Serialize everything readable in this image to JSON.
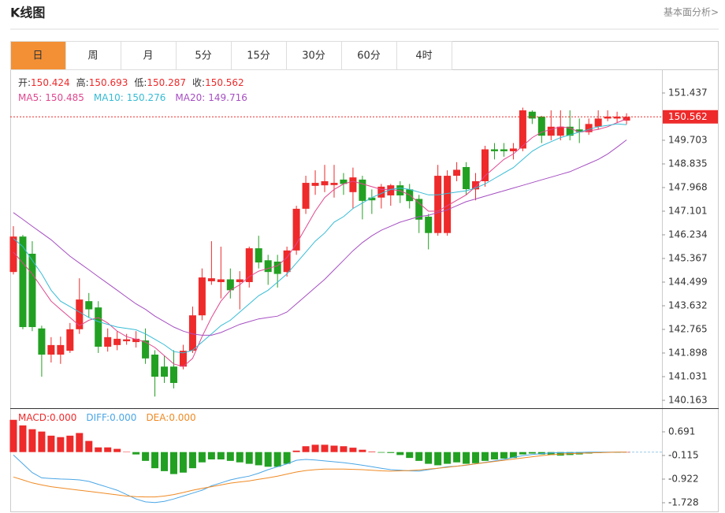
{
  "header": {
    "title": "K线图",
    "link": "基本面分析>"
  },
  "tabs": {
    "items": [
      "日",
      "周",
      "月",
      "5分",
      "15分",
      "30分",
      "60分",
      "4时"
    ],
    "active": 0
  },
  "chart_data": [
    {
      "type": "candlestick",
      "ohlc_labels": [
        "开:",
        "高:",
        "低:",
        "收:"
      ],
      "ohlc": [
        150.424,
        150.693,
        150.287,
        150.562
      ],
      "last_price": 150.562,
      "up_color": "#ee2a2a",
      "down_color": "#22a022",
      "ylim": [
        139.874,
        152.304
      ],
      "yticks": [
        151.437,
        149.703,
        148.835,
        147.968,
        147.101,
        146.234,
        145.367,
        144.499,
        143.632,
        142.765,
        141.898,
        141.031,
        140.163
      ],
      "open": [
        144.87,
        146.17,
        145.54,
        142.8,
        141.84,
        141.84,
        141.98,
        142.77,
        143.8,
        143.57,
        142.13,
        142.19,
        142.33,
        142.3,
        142.36,
        141.84,
        141.4,
        141.4,
        141.4,
        141.98,
        143.28,
        144.53,
        144.5,
        144.6,
        144.5,
        144.5,
        145.74,
        145.3,
        145.25,
        144.87,
        145.66,
        147.19,
        148.03,
        148.05,
        148.06,
        148.26,
        147.8,
        148.26,
        147.6,
        147.6,
        147.68,
        148.05,
        147.9,
        147.55,
        146.9,
        146.3,
        146.3,
        148.4,
        148.72,
        147.9,
        148.2,
        149.37,
        149.37,
        149.3,
        149.4,
        150.75,
        150.57,
        149.87,
        149.87,
        150.2,
        150.1,
        150.0,
        150.2,
        150.5,
        150.5,
        150.424
      ],
      "high": [
        146.55,
        146.23,
        146.0,
        142.9,
        142.48,
        142.5,
        143.0,
        144.64,
        144.1,
        143.8,
        142.8,
        142.7,
        142.6,
        142.7,
        142.8,
        142.0,
        141.8,
        142.0,
        142.2,
        143.6,
        145.0,
        146.0,
        145.8,
        145.0,
        144.9,
        145.8,
        146.2,
        145.5,
        145.5,
        145.8,
        147.3,
        148.4,
        148.6,
        148.8,
        148.8,
        148.5,
        148.7,
        148.4,
        147.9,
        148.1,
        148.1,
        148.2,
        148.1,
        147.7,
        147.0,
        148.8,
        148.6,
        148.9,
        148.9,
        148.5,
        149.5,
        149.6,
        149.6,
        149.6,
        150.9,
        150.8,
        150.6,
        150.8,
        150.8,
        150.8,
        150.5,
        150.5,
        150.8,
        150.8,
        150.75,
        150.693
      ],
      "low": [
        144.78,
        142.77,
        142.7,
        141.03,
        141.55,
        141.5,
        141.9,
        142.6,
        143.2,
        141.9,
        141.95,
        142.0,
        142.2,
        142.1,
        141.5,
        140.3,
        140.8,
        140.6,
        141.3,
        141.9,
        143.1,
        144.4,
        143.9,
        143.9,
        143.5,
        144.3,
        145.0,
        144.4,
        144.3,
        144.7,
        145.5,
        147.0,
        147.7,
        147.8,
        147.6,
        147.7,
        147.2,
        146.8,
        147.0,
        147.2,
        147.3,
        147.4,
        147.2,
        146.3,
        145.7,
        146.2,
        146.2,
        148.2,
        147.7,
        147.5,
        148.0,
        149.0,
        149.1,
        149.0,
        149.3,
        150.3,
        149.6,
        149.7,
        149.7,
        149.7,
        149.6,
        149.9,
        150.1,
        150.4,
        150.35,
        150.287
      ],
      "close": [
        146.17,
        142.85,
        142.85,
        141.84,
        142.19,
        142.19,
        142.77,
        143.86,
        143.5,
        142.13,
        142.48,
        142.42,
        142.4,
        142.42,
        141.7,
        141.03,
        141.03,
        140.8,
        141.98,
        143.28,
        144.67,
        144.64,
        144.6,
        144.2,
        144.6,
        145.74,
        145.22,
        144.87,
        144.8,
        145.66,
        147.19,
        148.14,
        148.14,
        148.2,
        148.14,
        148.1,
        148.34,
        147.48,
        147.5,
        148.0,
        148.05,
        147.68,
        147.47,
        146.79,
        146.3,
        148.4,
        148.4,
        148.62,
        147.91,
        148.2,
        149.37,
        149.3,
        149.3,
        149.4,
        150.8,
        150.5,
        149.87,
        150.2,
        150.2,
        149.87,
        150.0,
        150.3,
        150.5,
        150.57,
        150.57,
        150.562
      ],
      "series": [
        {
          "name": "MA5:",
          "legend_value": 150.485,
          "color": "#e0478f",
          "values": [
            145.6,
            145.2,
            144.8,
            144.3,
            143.8,
            143.5,
            143.2,
            142.9,
            143.1,
            143.2,
            143.0,
            142.7,
            142.5,
            142.4,
            142.3,
            142.1,
            141.8,
            141.5,
            141.4,
            141.7,
            142.5,
            143.2,
            143.8,
            144.2,
            144.4,
            144.7,
            144.9,
            145.0,
            145.1,
            145.4,
            145.9,
            146.5,
            147.1,
            147.6,
            147.9,
            148.1,
            148.2,
            148.1,
            148.0,
            147.9,
            147.9,
            147.85,
            147.7,
            147.4,
            147.1,
            147.1,
            147.3,
            147.5,
            147.7,
            148.0,
            148.4,
            148.7,
            149.0,
            149.2,
            149.5,
            149.8,
            150.0,
            150.1,
            150.2,
            150.15,
            150.0,
            150.05,
            150.1,
            150.2,
            150.35,
            150.485
          ]
        },
        {
          "name": "MA10:",
          "legend_value": 150.276,
          "color": "#36bcd6",
          "values": [
            146.1,
            145.8,
            145.3,
            144.8,
            144.2,
            143.8,
            143.6,
            143.4,
            143.2,
            143.05,
            142.95,
            142.85,
            142.8,
            142.75,
            142.6,
            142.4,
            142.2,
            141.95,
            141.9,
            142.0,
            142.3,
            142.6,
            142.9,
            143.1,
            143.4,
            143.7,
            144.0,
            144.2,
            144.5,
            144.8,
            145.2,
            145.6,
            146.0,
            146.3,
            146.7,
            146.9,
            147.2,
            147.4,
            147.6,
            147.75,
            147.9,
            147.95,
            147.9,
            147.8,
            147.7,
            147.7,
            147.75,
            147.8,
            147.85,
            147.95,
            148.1,
            148.3,
            148.5,
            148.7,
            149.0,
            149.3,
            149.5,
            149.65,
            149.8,
            149.9,
            150.0,
            150.1,
            150.2,
            150.25,
            150.3,
            150.276
          ]
        },
        {
          "name": "MA20:",
          "legend_value": 149.716,
          "color": "#a64fc2",
          "values": [
            147.05,
            146.8,
            146.55,
            146.3,
            146.05,
            145.75,
            145.45,
            145.2,
            144.95,
            144.7,
            144.45,
            144.2,
            143.95,
            143.7,
            143.5,
            143.25,
            143.05,
            142.85,
            142.7,
            142.6,
            142.55,
            142.55,
            142.65,
            142.8,
            142.95,
            143.05,
            143.15,
            143.2,
            143.25,
            143.4,
            143.7,
            144.0,
            144.3,
            144.6,
            144.95,
            145.3,
            145.65,
            145.95,
            146.2,
            146.4,
            146.55,
            146.7,
            146.8,
            146.9,
            146.95,
            147.05,
            147.15,
            147.3,
            147.45,
            147.55,
            147.65,
            147.75,
            147.85,
            147.95,
            148.05,
            148.15,
            148.25,
            148.35,
            148.45,
            148.55,
            148.7,
            148.85,
            149.0,
            149.2,
            149.45,
            149.716
          ]
        }
      ]
    },
    {
      "type": "macd",
      "ylim": [
        -2.051,
        1.497
      ],
      "yticks": [
        0.691,
        -0.115,
        -0.922,
        -1.728
      ],
      "bars": {
        "name": "MACD:",
        "legend_value": "0.000",
        "color": "#ee2a2a",
        "up_color": "#ee2a2a",
        "down_color": "#22a022",
        "values": [
          1.1,
          0.91,
          0.78,
          0.7,
          0.56,
          0.51,
          0.56,
          0.65,
          0.38,
          0.16,
          0.16,
          0.11,
          0.01,
          -0.08,
          -0.3,
          -0.55,
          -0.65,
          -0.75,
          -0.7,
          -0.55,
          -0.35,
          -0.25,
          -0.25,
          -0.3,
          -0.35,
          -0.4,
          -0.45,
          -0.5,
          -0.5,
          -0.4,
          0.05,
          0.2,
          0.25,
          0.25,
          0.22,
          0.2,
          0.15,
          0.08,
          0.02,
          -0.02,
          -0.03,
          -0.1,
          -0.2,
          -0.3,
          -0.4,
          -0.45,
          -0.4,
          -0.35,
          -0.4,
          -0.38,
          -0.3,
          -0.25,
          -0.22,
          -0.2,
          -0.08,
          -0.05,
          -0.08,
          -0.1,
          -0.12,
          -0.1,
          -0.08,
          -0.05,
          -0.03,
          -0.02,
          -0.02,
          0.0
        ]
      },
      "series": [
        {
          "name": "DIFF:",
          "legend_value": "0.000",
          "color": "#4aa6e6",
          "values": [
            -0.1,
            -0.4,
            -0.7,
            -0.88,
            -0.9,
            -0.92,
            -0.93,
            -0.95,
            -1.0,
            -1.1,
            -1.2,
            -1.3,
            -1.45,
            -1.6,
            -1.7,
            -1.72,
            -1.68,
            -1.6,
            -1.5,
            -1.4,
            -1.3,
            -1.15,
            -1.05,
            -0.95,
            -0.88,
            -0.82,
            -0.72,
            -0.6,
            -0.5,
            -0.4,
            -0.28,
            -0.25,
            -0.27,
            -0.3,
            -0.33,
            -0.36,
            -0.4,
            -0.45,
            -0.5,
            -0.55,
            -0.6,
            -0.62,
            -0.64,
            -0.65,
            -0.6,
            -0.55,
            -0.5,
            -0.48,
            -0.45,
            -0.4,
            -0.35,
            -0.3,
            -0.25,
            -0.18,
            -0.12,
            -0.08,
            -0.05,
            -0.03,
            -0.02,
            -0.02,
            -0.01,
            0,
            0,
            0,
            0,
            0
          ]
        },
        {
          "name": "DEA:",
          "legend_value": "0.000",
          "color": "#f08a24",
          "values": [
            -0.85,
            -0.95,
            -1.05,
            -1.12,
            -1.18,
            -1.22,
            -1.26,
            -1.3,
            -1.34,
            -1.38,
            -1.42,
            -1.46,
            -1.5,
            -1.52,
            -1.53,
            -1.53,
            -1.5,
            -1.45,
            -1.38,
            -1.3,
            -1.24,
            -1.18,
            -1.12,
            -1.06,
            -1.02,
            -0.98,
            -0.93,
            -0.88,
            -0.82,
            -0.75,
            -0.68,
            -0.63,
            -0.6,
            -0.58,
            -0.58,
            -0.58,
            -0.59,
            -0.6,
            -0.62,
            -0.64,
            -0.65,
            -0.64,
            -0.63,
            -0.61,
            -0.58,
            -0.55,
            -0.52,
            -0.48,
            -0.44,
            -0.4,
            -0.36,
            -0.32,
            -0.28,
            -0.24,
            -0.2,
            -0.16,
            -0.12,
            -0.09,
            -0.07,
            -0.05,
            -0.04,
            -0.03,
            -0.02,
            -0.01,
            0,
            0
          ]
        }
      ]
    }
  ]
}
